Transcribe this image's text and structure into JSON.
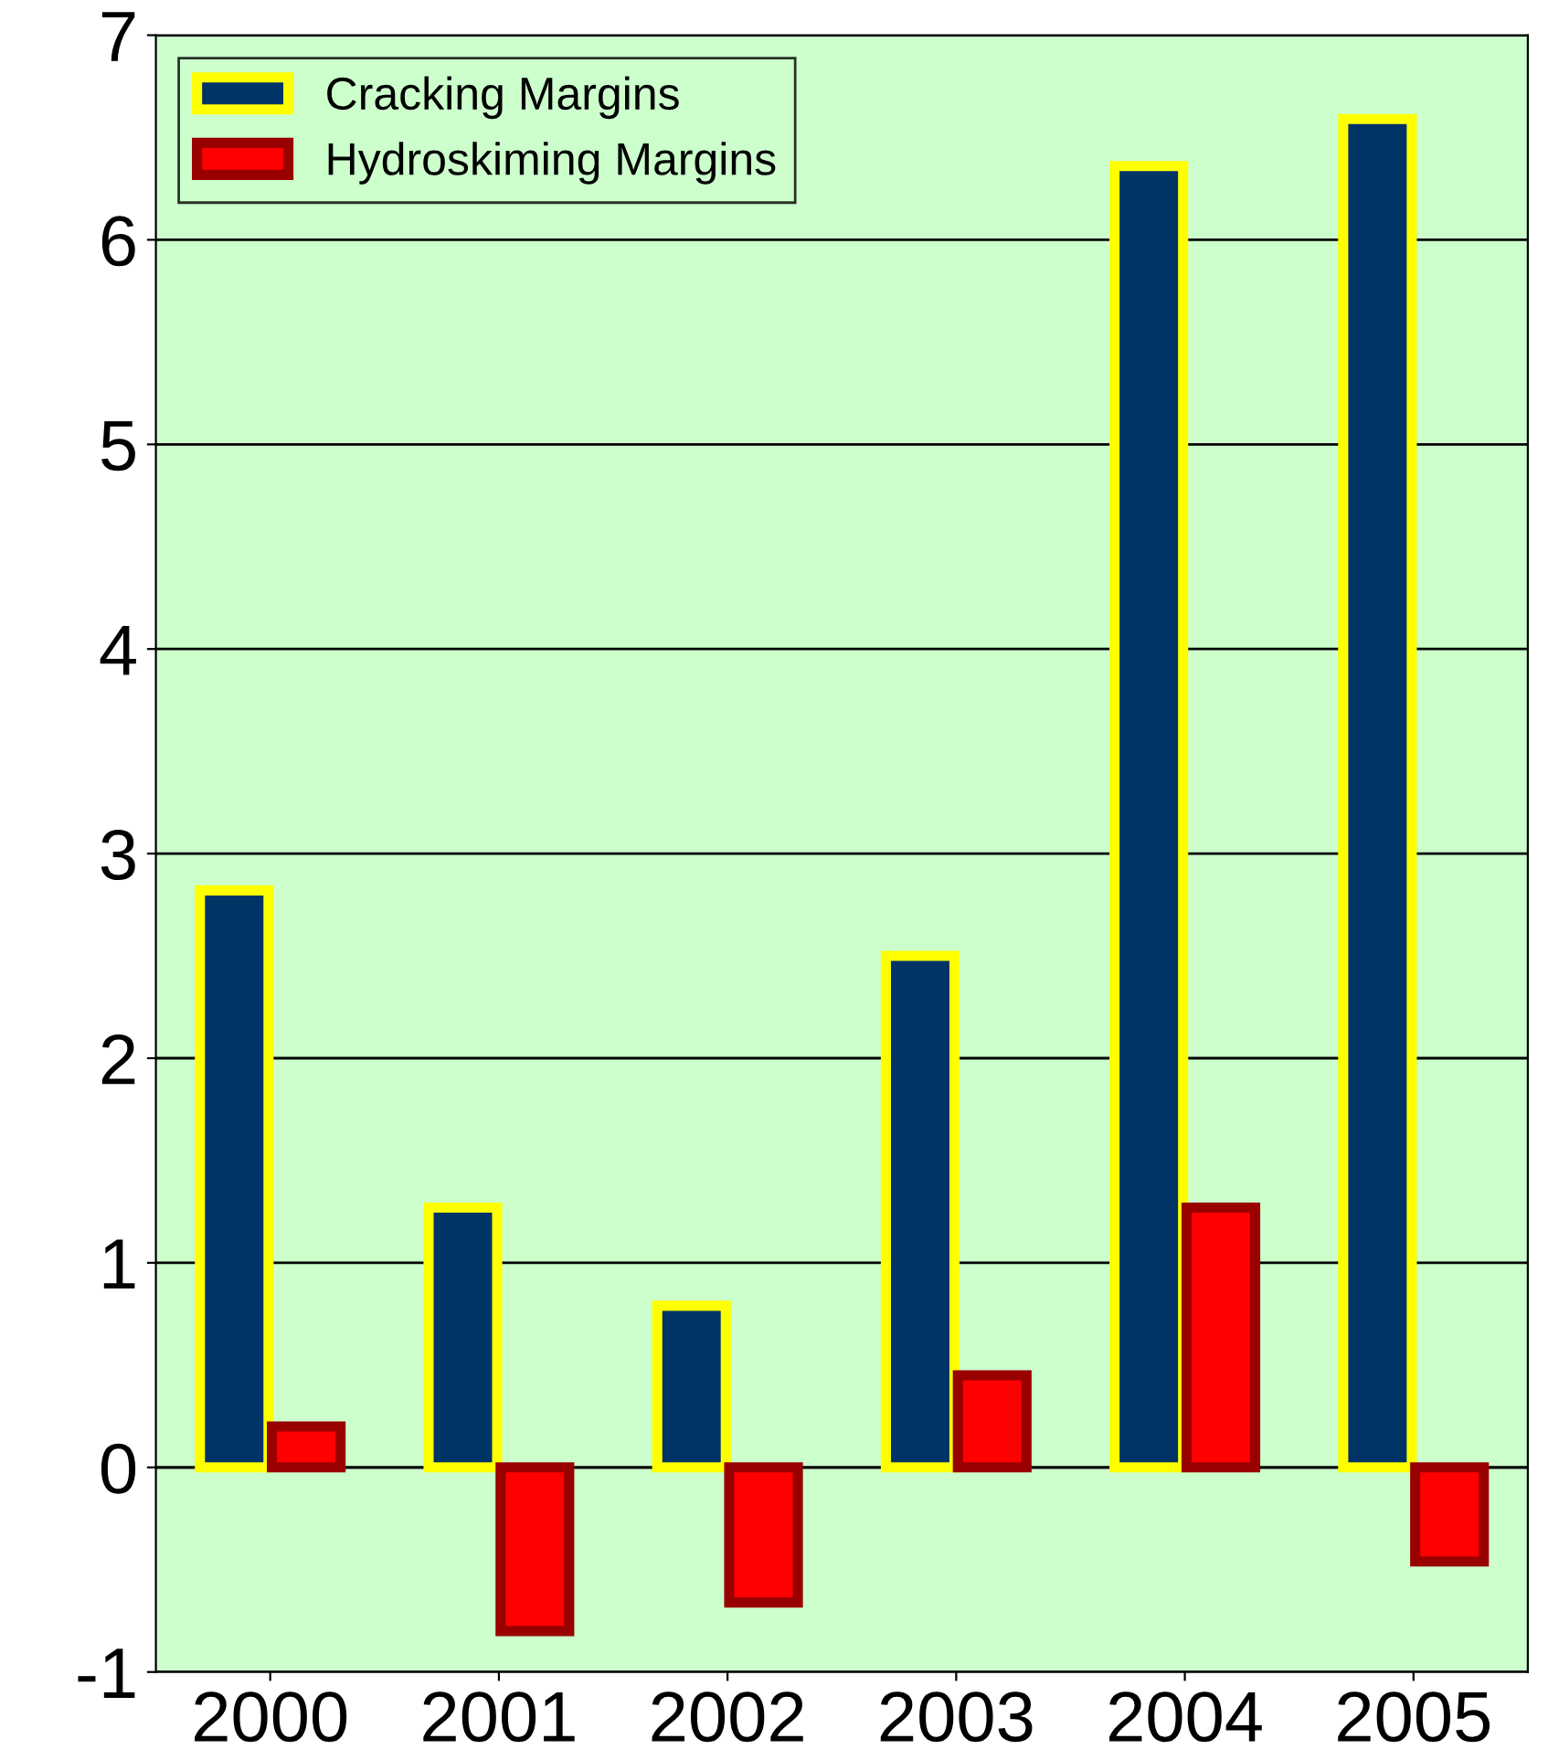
{
  "chart_data": {
    "type": "bar",
    "categories": [
      "2000",
      "2001",
      "2002",
      "2003",
      "2004",
      "2005"
    ],
    "series": [
      {
        "name": "Cracking Margins",
        "color": "#003366",
        "values": [
          2.82,
          1.27,
          0.79,
          2.5,
          6.36,
          6.59
        ]
      },
      {
        "name": "Hydroskiming Margins",
        "color": "#ff0000",
        "values": [
          0.2,
          -0.8,
          -0.66,
          0.45,
          1.27,
          -0.46
        ]
      }
    ],
    "ylim": [
      -1,
      7
    ],
    "yticks": [
      -1,
      0,
      1,
      2,
      3,
      4,
      5,
      6,
      7
    ],
    "grid": "y",
    "legend": "top left"
  }
}
